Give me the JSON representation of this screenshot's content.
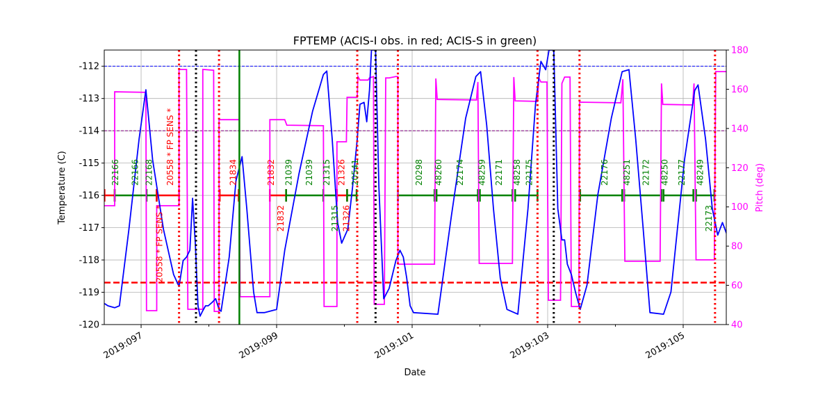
{
  "chart_data": {
    "type": "line",
    "title": "FPTEMP (ACIS-I obs. in red; ACIS-S in green)",
    "xlabel": "Date",
    "ylabel": "Temperature (C)",
    "y2label": "Pitch (deg)",
    "xlim": [
      96.456,
      105.636
    ],
    "ylim": [
      -120,
      -111.5
    ],
    "y2lim": [
      40,
      180
    ],
    "grid": true,
    "x_ticks": [
      {
        "value": 97,
        "label": "2019:097"
      },
      {
        "value": 99,
        "label": "2019:099"
      },
      {
        "value": 101,
        "label": "2019:101"
      },
      {
        "value": 103,
        "label": "2019:103"
      },
      {
        "value": 105,
        "label": "2019:105"
      }
    ],
    "x_minor_ticks": [
      98,
      100,
      102,
      104
    ],
    "y_ticks": [
      -120,
      -119,
      -118,
      -117,
      -116,
      -115,
      -114,
      -113,
      -112
    ],
    "y2_ticks": [
      40,
      60,
      80,
      100,
      120,
      140,
      160,
      180
    ],
    "colors": {
      "temperature": "#0000ff",
      "pitch": "#ff00ff",
      "acis_i": "#ff0000",
      "acis_s": "#008000",
      "planning_limit": "#0000ff",
      "limit_2": "#800080",
      "acis_i_limit": "#ff0000",
      "pitch_axis": "#ff00ff"
    },
    "hlines": [
      {
        "value": -112,
        "color": "#0000ff",
        "style": "dashed"
      },
      {
        "value": -114,
        "color": "#800080",
        "style": "dashed"
      },
      {
        "value": -118.7,
        "color": "#ff0000",
        "style": "dashed-thick"
      }
    ],
    "vlines": [
      {
        "value": 97.56,
        "color": "#ff0000",
        "style": "dotted"
      },
      {
        "value": 98.15,
        "color": "#ff0000",
        "style": "dotted"
      },
      {
        "value": 100.19,
        "color": "#ff0000",
        "style": "dotted"
      },
      {
        "value": 100.79,
        "color": "#ff0000",
        "style": "dotted"
      },
      {
        "value": 102.85,
        "color": "#ff0000",
        "style": "dotted"
      },
      {
        "value": 103.47,
        "color": "#ff0000",
        "style": "dotted"
      },
      {
        "value": 105.47,
        "color": "#ff0000",
        "style": "dotted"
      },
      {
        "value": 97.81,
        "color": "#000000",
        "style": "dotted"
      },
      {
        "value": 100.46,
        "color": "#000000",
        "style": "dotted"
      },
      {
        "value": 103.09,
        "color": "#000000",
        "style": "dotted"
      },
      {
        "value": 98.45,
        "color": "#008000",
        "style": "solid"
      }
    ],
    "temperature": {
      "x": [
        96.46,
        96.51,
        96.61,
        96.68,
        96.82,
        96.97,
        97.07,
        97.17,
        97.33,
        97.48,
        97.56,
        97.62,
        97.67,
        97.72,
        97.76,
        97.8,
        97.84,
        97.87,
        97.91,
        97.95,
        97.99,
        98.05,
        98.1,
        98.15,
        98.18,
        98.3,
        98.4,
        98.49,
        98.56,
        98.66,
        98.71,
        98.82,
        99.0,
        99.12,
        99.33,
        99.53,
        99.69,
        99.74,
        99.82,
        99.9,
        99.96,
        100.05,
        100.12,
        100.19,
        100.23,
        100.29,
        100.33,
        100.37,
        100.4,
        100.46,
        100.51,
        100.58,
        100.66,
        100.76,
        100.82,
        100.87,
        100.92,
        100.97,
        101.02,
        101.38,
        101.58,
        101.79,
        101.94,
        102.01,
        102.1,
        102.2,
        102.3,
        102.4,
        102.56,
        102.71,
        102.82,
        102.9,
        102.97,
        103.02,
        103.09,
        103.15,
        103.21,
        103.25,
        103.29,
        103.35,
        103.41,
        103.48,
        103.58,
        103.74,
        103.94,
        104.1,
        104.2,
        104.3,
        104.41,
        104.51,
        104.71,
        104.82,
        105.02,
        105.17,
        105.22,
        105.33,
        105.43,
        105.51,
        105.58,
        105.64
      ],
      "y": [
        -119.35,
        -119.42,
        -119.48,
        -119.42,
        -117.05,
        -114.26,
        -112.73,
        -114.9,
        -117.05,
        -118.45,
        -118.82,
        -118.02,
        -117.91,
        -117.7,
        -116.09,
        -117.48,
        -119.42,
        -119.74,
        -119.57,
        -119.42,
        -119.42,
        -119.31,
        -119.2,
        -119.53,
        -119.59,
        -117.91,
        -115.55,
        -114.8,
        -116.41,
        -118.99,
        -119.63,
        -119.63,
        -119.53,
        -117.7,
        -115.33,
        -113.4,
        -112.26,
        -112.15,
        -114.26,
        -116.84,
        -117.48,
        -117.05,
        -115.76,
        -114.26,
        -113.18,
        -113.12,
        -113.72,
        -112.75,
        -111.5,
        -111.5,
        -115.76,
        -119.2,
        -118.88,
        -118.02,
        -117.7,
        -117.91,
        -118.56,
        -119.42,
        -119.63,
        -119.68,
        -116.62,
        -113.61,
        -112.32,
        -112.17,
        -113.83,
        -116.41,
        -118.56,
        -119.53,
        -119.68,
        -116.41,
        -113.18,
        -111.85,
        -112.11,
        -111.5,
        -111.5,
        -116.41,
        -117.38,
        -117.38,
        -118.13,
        -118.45,
        -118.99,
        -119.53,
        -118.78,
        -115.98,
        -113.61,
        -112.17,
        -112.11,
        -114.26,
        -117.05,
        -119.63,
        -119.68,
        -118.99,
        -114.9,
        -112.75,
        -112.58,
        -114.26,
        -116.41,
        -117.23,
        -116.84,
        -117.18
      ]
    },
    "pitch": {
      "x": [
        96.46,
        96.61,
        96.61,
        97.07,
        97.08,
        97.23,
        97.23,
        97.56,
        97.56,
        97.67,
        97.69,
        97.91,
        97.91,
        98.07,
        98.08,
        98.15,
        98.15,
        98.45,
        98.46,
        98.9,
        98.9,
        99.12,
        99.15,
        99.69,
        99.7,
        99.89,
        99.89,
        100.03,
        100.04,
        100.19,
        100.2,
        100.23,
        100.35,
        100.37,
        100.43,
        100.44,
        100.59,
        100.61,
        100.66,
        100.76,
        100.79,
        100.79,
        101.33,
        101.35,
        101.37,
        101.95,
        101.97,
        101.99,
        102.48,
        102.5,
        102.52,
        102.85,
        102.87,
        102.9,
        102.99,
        103.01,
        103.19,
        103.21,
        103.25,
        103.33,
        103.35,
        103.46,
        103.47,
        104.08,
        104.11,
        104.14,
        104.66,
        104.68,
        104.7,
        105.14,
        105.16,
        105.19,
        105.46,
        105.48,
        105.64
      ],
      "y": [
        100.6,
        100.6,
        158.7,
        158.4,
        47.1,
        47.1,
        100.6,
        100.6,
        170.1,
        170.1,
        47.8,
        47.8,
        170.1,
        169.7,
        46.7,
        46.7,
        144.5,
        144.5,
        54.2,
        54.2,
        144.5,
        144.5,
        141.7,
        141.4,
        49.2,
        49.2,
        133.2,
        133.2,
        155.9,
        155.9,
        166.5,
        164.7,
        164.7,
        165.8,
        166.5,
        50.3,
        50.3,
        165.8,
        165.8,
        166.5,
        166.5,
        70.8,
        70.8,
        165.5,
        154.8,
        154.5,
        163.7,
        71.2,
        71.2,
        166.2,
        154.1,
        153.8,
        165.8,
        163.7,
        163.7,
        52.4,
        52.4,
        163.0,
        166.2,
        166.2,
        49.2,
        49.2,
        153.4,
        153.1,
        165.1,
        72.3,
        72.3,
        163.0,
        152.3,
        152.0,
        163.0,
        73.0,
        73.0,
        169.0,
        169.0
      ]
    },
    "obsid_bar_level": -116,
    "obsid_segments": [
      {
        "start": 96.46,
        "end": 96.61,
        "instrument": "ACIS-I"
      },
      {
        "start": 96.61,
        "end": 97.08,
        "instrument": "ACIS-S"
      },
      {
        "start": 97.08,
        "end": 97.23,
        "instrument": "ACIS-S"
      },
      {
        "start": 97.23,
        "end": 97.56,
        "instrument": "ACIS-I"
      },
      {
        "start": 98.16,
        "end": 98.44,
        "instrument": "ACIS-I"
      },
      {
        "start": 98.9,
        "end": 99.14,
        "instrument": "ACIS-I"
      },
      {
        "start": 99.14,
        "end": 99.69,
        "instrument": "ACIS-S"
      },
      {
        "start": 99.69,
        "end": 99.89,
        "instrument": "ACIS-S"
      },
      {
        "start": 99.89,
        "end": 100.04,
        "instrument": "ACIS-I"
      },
      {
        "start": 100.04,
        "end": 100.18,
        "instrument": "ACIS-S"
      },
      {
        "start": 100.79,
        "end": 101.33,
        "instrument": "ACIS-S"
      },
      {
        "start": 101.36,
        "end": 101.97,
        "instrument": "ACIS-S"
      },
      {
        "start": 102.0,
        "end": 102.48,
        "instrument": "ACIS-S"
      },
      {
        "start": 102.52,
        "end": 102.85,
        "instrument": "ACIS-S"
      },
      {
        "start": 103.48,
        "end": 104.1,
        "instrument": "ACIS-S"
      },
      {
        "start": 104.13,
        "end": 104.68,
        "instrument": "ACIS-S"
      },
      {
        "start": 104.71,
        "end": 105.15,
        "instrument": "ACIS-S"
      },
      {
        "start": 105.19,
        "end": 105.46,
        "instrument": "ACIS-S"
      }
    ],
    "obsid_labels": [
      {
        "x": 96.62,
        "text": "22166",
        "instrument": "ACIS-S"
      },
      {
        "x": 96.91,
        "text": "22166",
        "instrument": "ACIS-S"
      },
      {
        "x": 97.12,
        "text": "22168",
        "instrument": "ACIS-S"
      },
      {
        "x": 97.27,
        "text": "20558 * FP SENS *",
        "instrument": "ACIS-I"
      },
      {
        "x": 97.43,
        "text": "20558 * FP SENS *",
        "instrument": "ACIS-I"
      },
      {
        "x": 98.36,
        "text": "21834",
        "instrument": "ACIS-I"
      },
      {
        "x": 98.92,
        "text": "21832",
        "instrument": "ACIS-I"
      },
      {
        "x": 99.06,
        "text": "21832",
        "instrument": "ACIS-I"
      },
      {
        "x": 99.18,
        "text": "21039",
        "instrument": "ACIS-S"
      },
      {
        "x": 99.48,
        "text": "21039",
        "instrument": "ACIS-S"
      },
      {
        "x": 99.74,
        "text": "21315",
        "instrument": "ACIS-S"
      },
      {
        "x": 99.86,
        "text": "21315",
        "instrument": "ACIS-S"
      },
      {
        "x": 99.96,
        "text": "21326",
        "instrument": "ACIS-I"
      },
      {
        "x": 100.03,
        "text": "21326",
        "instrument": "ACIS-I"
      },
      {
        "x": 100.16,
        "text": "20541",
        "instrument": "ACIS-S"
      },
      {
        "x": 101.1,
        "text": "20298",
        "instrument": "ACIS-S"
      },
      {
        "x": 101.39,
        "text": "48260",
        "instrument": "ACIS-S"
      },
      {
        "x": 101.71,
        "text": "22174",
        "instrument": "ACIS-S"
      },
      {
        "x": 102.03,
        "text": "48259",
        "instrument": "ACIS-S"
      },
      {
        "x": 102.28,
        "text": "22171",
        "instrument": "ACIS-S"
      },
      {
        "x": 102.55,
        "text": "48258",
        "instrument": "ACIS-S"
      },
      {
        "x": 102.73,
        "text": "22175",
        "instrument": "ACIS-S"
      },
      {
        "x": 103.84,
        "text": "22176",
        "instrument": "ACIS-S"
      },
      {
        "x": 104.17,
        "text": "48251",
        "instrument": "ACIS-S"
      },
      {
        "x": 104.45,
        "text": "22172",
        "instrument": "ACIS-S"
      },
      {
        "x": 104.73,
        "text": "48250",
        "instrument": "ACIS-S"
      },
      {
        "x": 104.98,
        "text": "22177",
        "instrument": "ACIS-S"
      },
      {
        "x": 105.25,
        "text": "48249",
        "instrument": "ACIS-S"
      },
      {
        "x": 105.38,
        "text": "22173",
        "instrument": "ACIS-S"
      }
    ]
  }
}
